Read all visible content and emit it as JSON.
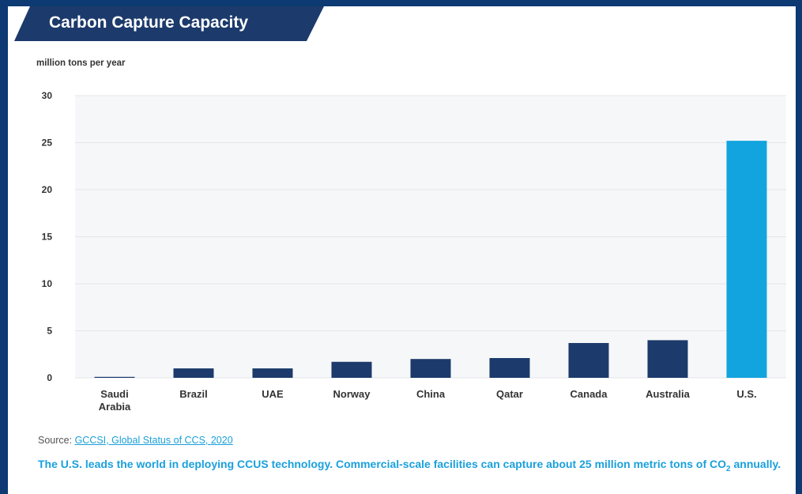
{
  "title": "Carbon Capture Capacity",
  "colors": {
    "frame": "#0d3a73",
    "banner": "#1c3a6b",
    "bar": "#1c3a6b",
    "highlight_bar": "#12a4df",
    "grid": "#e3e6ea",
    "plot_bg": "#f6f7f8",
    "caption": "#1aa0dc"
  },
  "source": {
    "prefix": "Source: ",
    "link_text": "GCCSI, Global Status of CCS, 2020"
  },
  "caption": {
    "part1": "The U.S. leads the world in deploying CCUS technology. Commercial-scale facilities can capture about 25 million metric tons of CO",
    "subscript": "2",
    "part2": " annually."
  },
  "chart_data": {
    "type": "bar",
    "title": "Carbon Capture Capacity",
    "ylabel": "million tons per year",
    "xlabel": "",
    "categories": [
      [
        "Saudi",
        "Arabia"
      ],
      [
        "Brazil"
      ],
      [
        "UAE"
      ],
      [
        "Norway"
      ],
      [
        "China"
      ],
      [
        "Qatar"
      ],
      [
        "Canada"
      ],
      [
        "Australia"
      ],
      [
        "U.S."
      ]
    ],
    "values": [
      0.1,
      1.0,
      1.0,
      1.7,
      2.0,
      2.1,
      3.7,
      4.0,
      25.2
    ],
    "highlight": "U.S.",
    "ylim": [
      0,
      30
    ],
    "yticks": [
      0,
      5,
      10,
      15,
      20,
      25,
      30
    ],
    "grid": true,
    "legend": "none"
  }
}
